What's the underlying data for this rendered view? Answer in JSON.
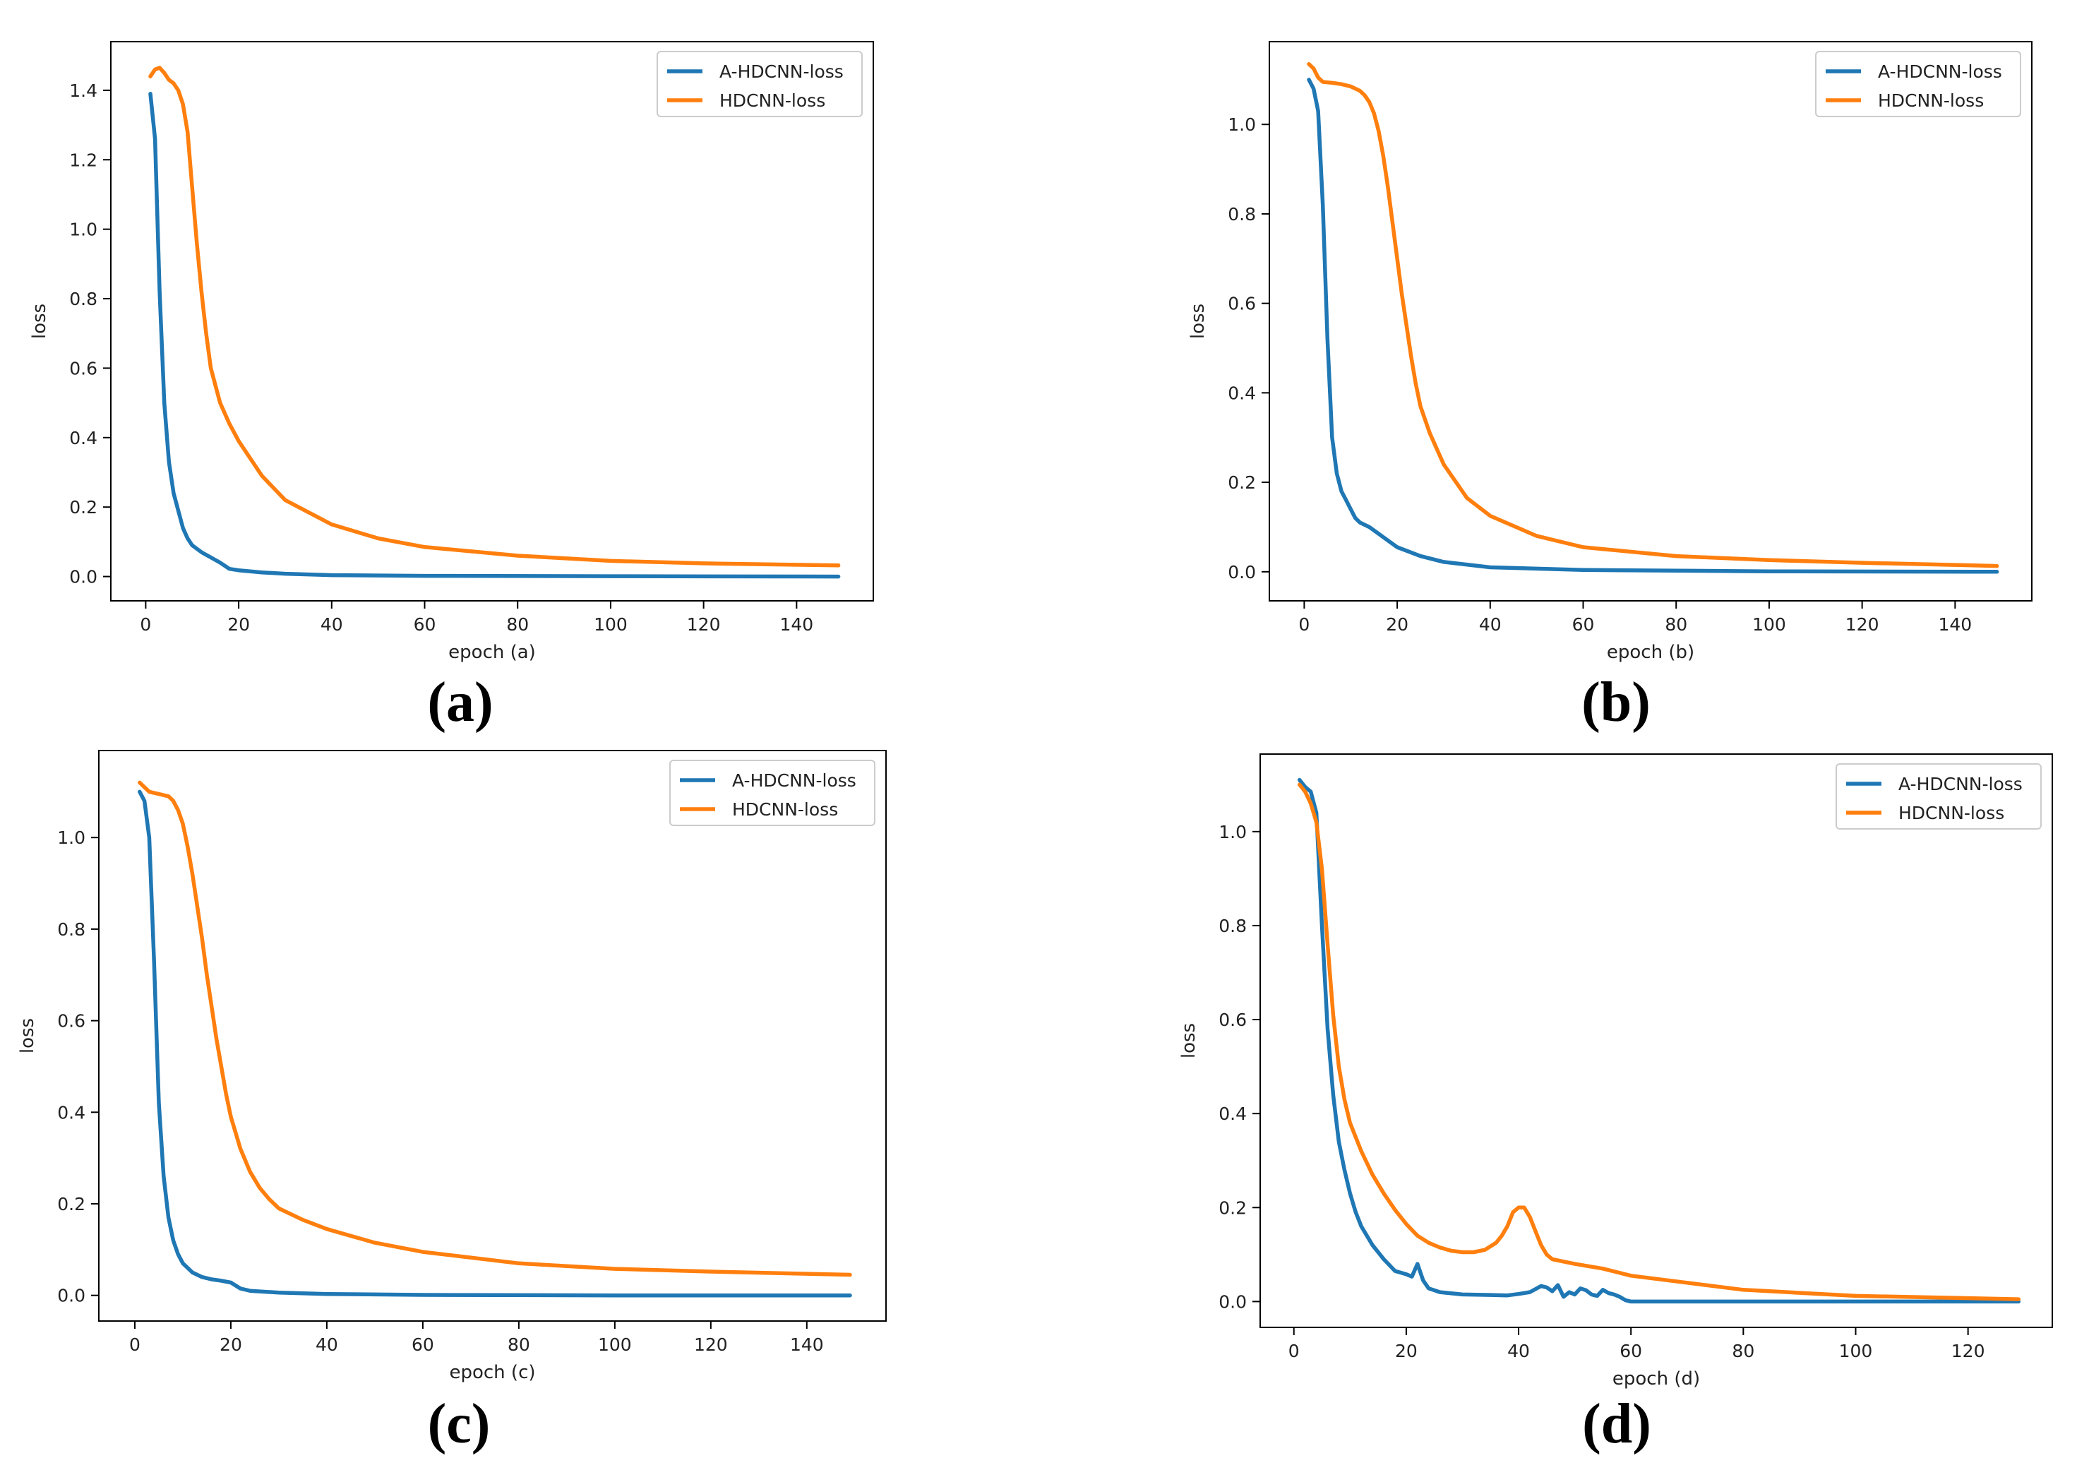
{
  "colors": {
    "loss_a": "#1f77b4",
    "loss_h": "#ff7f0e",
    "frame": "#000000"
  },
  "chart_data": [
    {
      "type": "line",
      "panel": "a",
      "caption": "(a)",
      "xlabel": "epoch (a)",
      "ylabel": "loss",
      "xlim": [
        -7.5,
        156.5
      ],
      "ylim": [
        -0.07,
        1.54
      ],
      "xticks": [
        0,
        20,
        40,
        60,
        80,
        100,
        120,
        140
      ],
      "xtick_labels": [
        "0",
        "20",
        "40",
        "60",
        "80",
        "100",
        "120",
        "140"
      ],
      "yticks": [
        0.0,
        0.2,
        0.4,
        0.6,
        0.8,
        1.0,
        1.2,
        1.4
      ],
      "ytick_labels": [
        "0.0",
        "0.2",
        "0.4",
        "0.6",
        "0.8",
        "1.0",
        "1.2",
        "1.4"
      ],
      "legend": [
        "A-HDCNN-loss",
        "HDCNN-loss"
      ],
      "legend_position": "top-right",
      "series": [
        {
          "name": "A-HDCNN-loss",
          "x": [
            1,
            2,
            3,
            4,
            5,
            6,
            7,
            8,
            9,
            10,
            12,
            14,
            16,
            18,
            20,
            25,
            30,
            40,
            60,
            100,
            149
          ],
          "y": [
            1.39,
            1.26,
            0.82,
            0.5,
            0.33,
            0.24,
            0.19,
            0.14,
            0.11,
            0.09,
            0.07,
            0.055,
            0.04,
            0.022,
            0.018,
            0.012,
            0.008,
            0.004,
            0.002,
            0.001,
            0.0
          ]
        },
        {
          "name": "HDCNN-loss",
          "x": [
            1,
            2,
            3,
            4,
            5,
            6,
            7,
            8,
            9,
            10,
            11,
            12,
            13,
            14,
            16,
            18,
            20,
            25,
            30,
            40,
            50,
            60,
            80,
            100,
            120,
            149
          ],
          "y": [
            1.44,
            1.46,
            1.465,
            1.45,
            1.43,
            1.42,
            1.4,
            1.36,
            1.28,
            1.12,
            0.96,
            0.82,
            0.7,
            0.6,
            0.5,
            0.44,
            0.39,
            0.29,
            0.22,
            0.15,
            0.11,
            0.085,
            0.06,
            0.045,
            0.038,
            0.032
          ]
        }
      ]
    },
    {
      "type": "line",
      "panel": "b",
      "caption": "(b)",
      "xlabel": "epoch (b)",
      "ylabel": "loss",
      "xlim": [
        -7.5,
        156.5
      ],
      "ylim": [
        -0.065,
        1.185
      ],
      "xticks": [
        0,
        20,
        40,
        60,
        80,
        100,
        120,
        140
      ],
      "xtick_labels": [
        "0",
        "20",
        "40",
        "60",
        "80",
        "100",
        "120",
        "140"
      ],
      "yticks": [
        0.0,
        0.2,
        0.4,
        0.6,
        0.8,
        1.0
      ],
      "ytick_labels": [
        "0.0",
        "0.2",
        "0.4",
        "0.6",
        "0.8",
        "1.0"
      ],
      "legend": [
        "A-HDCNN-loss",
        "HDCNN-loss"
      ],
      "legend_position": "top-right",
      "series": [
        {
          "name": "A-HDCNN-loss",
          "x": [
            1,
            2,
            3,
            4,
            5,
            6,
            7,
            8,
            9,
            10,
            11,
            12,
            14,
            16,
            18,
            20,
            25,
            30,
            40,
            60,
            100,
            149
          ],
          "y": [
            1.1,
            1.08,
            1.03,
            0.82,
            0.52,
            0.3,
            0.22,
            0.18,
            0.16,
            0.14,
            0.12,
            0.11,
            0.1,
            0.085,
            0.07,
            0.055,
            0.035,
            0.022,
            0.01,
            0.004,
            0.001,
            0.0
          ]
        },
        {
          "name": "HDCNN-loss",
          "x": [
            1,
            2,
            3,
            4,
            6,
            8,
            10,
            12,
            13,
            14,
            15,
            16,
            17,
            18,
            19,
            20,
            21,
            22,
            23,
            24,
            25,
            27,
            30,
            35,
            40,
            50,
            60,
            80,
            100,
            120,
            149
          ],
          "y": [
            1.135,
            1.125,
            1.105,
            1.095,
            1.093,
            1.09,
            1.085,
            1.075,
            1.065,
            1.05,
            1.025,
            0.985,
            0.93,
            0.86,
            0.78,
            0.7,
            0.62,
            0.55,
            0.48,
            0.42,
            0.37,
            0.31,
            0.24,
            0.165,
            0.125,
            0.08,
            0.055,
            0.035,
            0.026,
            0.02,
            0.013
          ]
        }
      ]
    },
    {
      "type": "line",
      "panel": "c",
      "caption": "(c)",
      "xlabel": "epoch (c)",
      "ylabel": "loss",
      "xlim": [
        -7.5,
        156.5
      ],
      "ylim": [
        -0.056,
        1.19
      ],
      "xticks": [
        0,
        20,
        40,
        60,
        80,
        100,
        120,
        140
      ],
      "xtick_labels": [
        "0",
        "20",
        "40",
        "60",
        "80",
        "100",
        "120",
        "140"
      ],
      "yticks": [
        0.0,
        0.2,
        0.4,
        0.6,
        0.8,
        1.0
      ],
      "ytick_labels": [
        "0.0",
        "0.2",
        "0.4",
        "0.6",
        "0.8",
        "1.0"
      ],
      "legend": [
        "A-HDCNN-loss",
        "HDCNN-loss"
      ],
      "legend_position": "top-right",
      "series": [
        {
          "name": "A-HDCNN-loss",
          "x": [
            1,
            2,
            3,
            4,
            5,
            6,
            7,
            8,
            9,
            10,
            12,
            14,
            16,
            18,
            20,
            22,
            24,
            30,
            40,
            60,
            100,
            149
          ],
          "y": [
            1.1,
            1.08,
            1.0,
            0.73,
            0.42,
            0.26,
            0.17,
            0.12,
            0.09,
            0.07,
            0.05,
            0.04,
            0.035,
            0.032,
            0.028,
            0.015,
            0.01,
            0.006,
            0.003,
            0.001,
            0.0,
            0.0
          ]
        },
        {
          "name": "HDCNN-loss",
          "x": [
            1,
            2,
            3,
            5,
            7,
            8,
            9,
            10,
            11,
            12,
            13,
            14,
            15,
            16,
            17,
            18,
            19,
            20,
            22,
            24,
            26,
            28,
            30,
            35,
            40,
            50,
            60,
            80,
            100,
            120,
            149
          ],
          "y": [
            1.12,
            1.11,
            1.1,
            1.095,
            1.09,
            1.08,
            1.06,
            1.03,
            0.98,
            0.92,
            0.85,
            0.78,
            0.7,
            0.63,
            0.56,
            0.5,
            0.44,
            0.39,
            0.32,
            0.27,
            0.235,
            0.21,
            0.19,
            0.165,
            0.145,
            0.115,
            0.095,
            0.07,
            0.058,
            0.052,
            0.045
          ]
        }
      ]
    },
    {
      "type": "line",
      "panel": "d",
      "caption": "(d)",
      "xlabel": "epoch (d)",
      "ylabel": "loss",
      "xlim": [
        -6.0,
        135.0
      ],
      "ylim": [
        -0.055,
        1.165
      ],
      "xticks": [
        0,
        20,
        40,
        60,
        80,
        100,
        120
      ],
      "xtick_labels": [
        "0",
        "20",
        "40",
        "60",
        "80",
        "100",
        "120"
      ],
      "yticks": [
        0.0,
        0.2,
        0.4,
        0.6,
        0.8,
        1.0
      ],
      "ytick_labels": [
        "0.0",
        "0.2",
        "0.4",
        "0.6",
        "0.8",
        "1.0"
      ],
      "legend": [
        "A-HDCNN-loss",
        "HDCNN-loss"
      ],
      "legend_position": "top-right",
      "series": [
        {
          "name": "A-HDCNN-loss",
          "x": [
            1,
            2,
            3,
            4,
            5,
            6,
            7,
            8,
            9,
            10,
            11,
            12,
            14,
            16,
            18,
            20,
            21,
            22,
            23,
            24,
            26,
            30,
            35,
            38,
            40,
            42,
            44,
            45,
            46,
            47,
            48,
            49,
            50,
            51,
            52,
            53,
            54,
            55,
            56,
            57,
            58,
            59,
            60,
            70,
            100,
            129
          ],
          "y": [
            1.11,
            1.095,
            1.085,
            1.04,
            0.8,
            0.58,
            0.44,
            0.34,
            0.28,
            0.23,
            0.19,
            0.16,
            0.12,
            0.09,
            0.065,
            0.058,
            0.053,
            0.08,
            0.045,
            0.028,
            0.02,
            0.015,
            0.014,
            0.013,
            0.016,
            0.02,
            0.033,
            0.03,
            0.022,
            0.035,
            0.01,
            0.02,
            0.015,
            0.028,
            0.024,
            0.015,
            0.012,
            0.025,
            0.018,
            0.015,
            0.01,
            0.003,
            0.0,
            0.0,
            0.0,
            0.0
          ]
        },
        {
          "name": "HDCNN-loss",
          "x": [
            1,
            2,
            3,
            4,
            5,
            6,
            7,
            8,
            9,
            10,
            12,
            14,
            16,
            18,
            20,
            22,
            24,
            26,
            28,
            30,
            32,
            34,
            36,
            37,
            38,
            39,
            40,
            41,
            42,
            43,
            44,
            45,
            46,
            48,
            50,
            55,
            60,
            70,
            80,
            100,
            129
          ],
          "y": [
            1.1,
            1.085,
            1.06,
            1.02,
            0.92,
            0.76,
            0.61,
            0.5,
            0.43,
            0.38,
            0.32,
            0.27,
            0.23,
            0.195,
            0.165,
            0.14,
            0.125,
            0.115,
            0.108,
            0.105,
            0.105,
            0.11,
            0.125,
            0.14,
            0.16,
            0.19,
            0.2,
            0.2,
            0.18,
            0.15,
            0.12,
            0.1,
            0.09,
            0.085,
            0.08,
            0.07,
            0.055,
            0.04,
            0.025,
            0.012,
            0.005
          ]
        }
      ]
    }
  ]
}
